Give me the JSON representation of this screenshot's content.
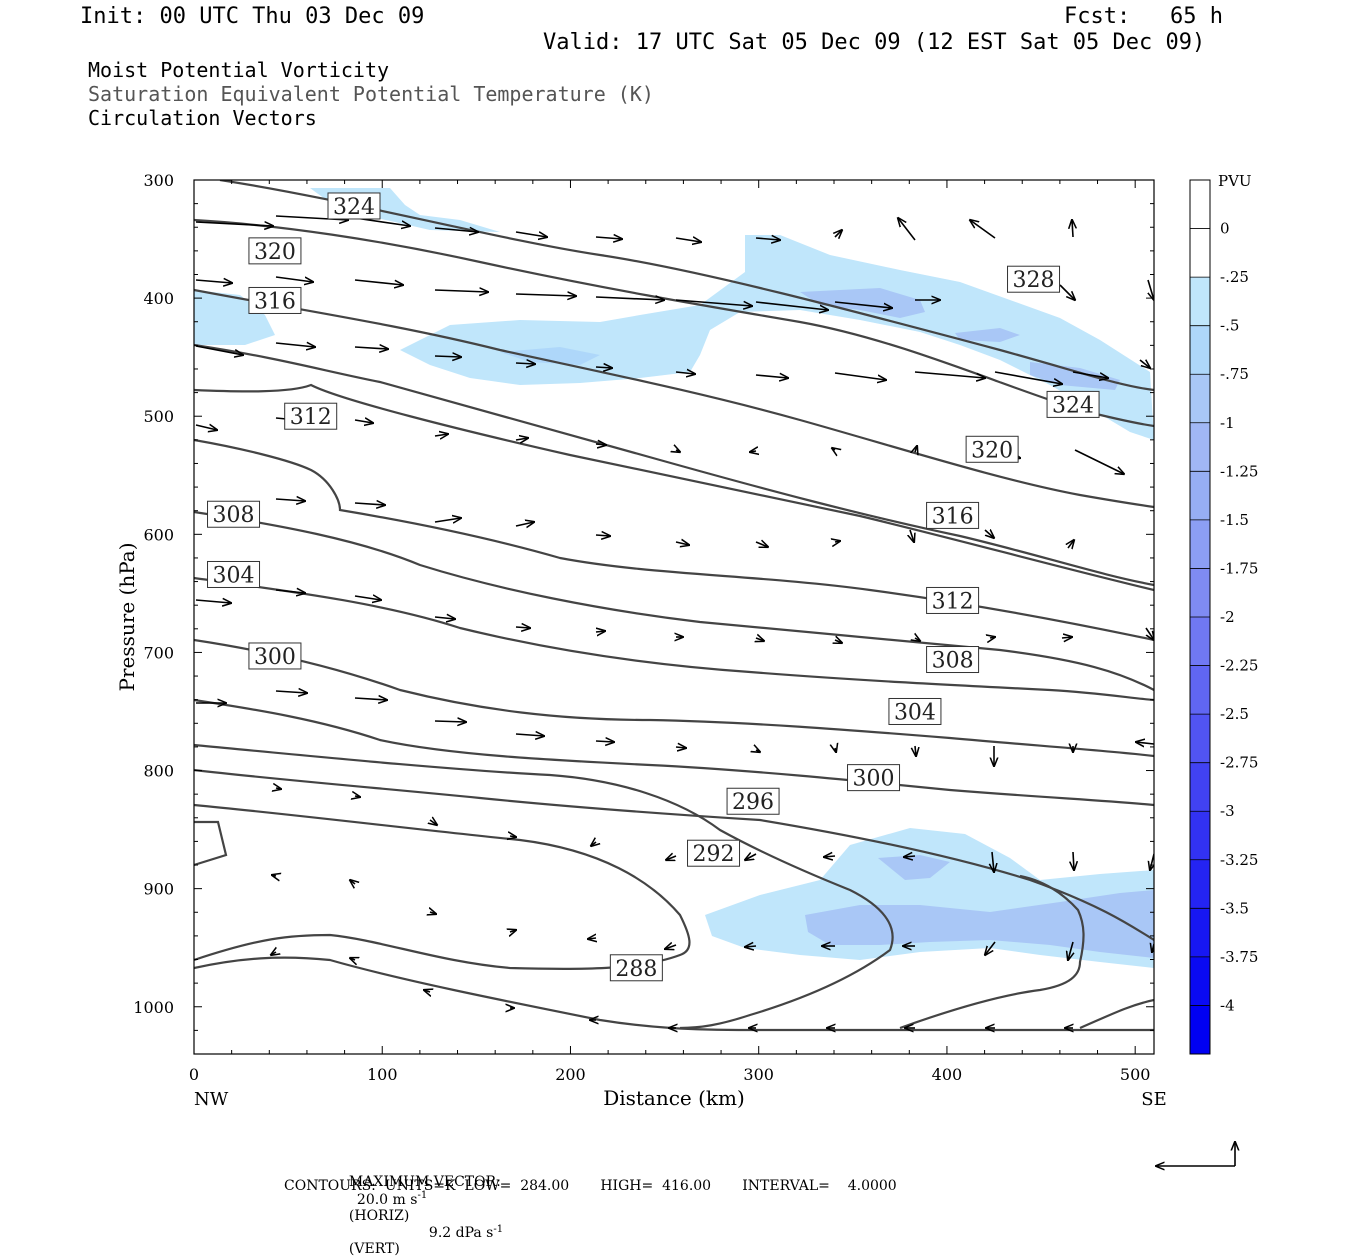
{
  "header": {
    "init": "Init: 00 UTC Thu 03 Dec 09",
    "fcst": "Fcst:   65 h",
    "valid": "Valid: 17 UTC Sat 05 Dec 09 (12 EST Sat 05 Dec 09)"
  },
  "fields": {
    "f1": "Moist Potential Vorticity",
    "f2": "Saturation Equivalent Potential Temperature (K)",
    "f3": "Circulation Vectors"
  },
  "footer": {
    "max_vector_label": "MAXIMUM VECTOR:",
    "horiz_value": "20.0 m s",
    "horiz_unit": "(HORIZ)",
    "vert_value": "9.2 dPa s",
    "vert_unit": "(VERT)",
    "exp": "-1",
    "contours": "CONTOURS:  UNITS=K  LOW=  284.00       HIGH=  416.00       INTERVAL=    4.0000"
  },
  "colors": {
    "pv1": "#c0e6fb",
    "pv2": "#a9c7f6",
    "pv3": "#96aef4",
    "contour": "#444444"
  },
  "chart_data": {
    "type": "cross-section",
    "xlabel": "Distance (km)",
    "ylabel": "Pressure (hPa)",
    "xlim": [
      0,
      510
    ],
    "ylim": [
      1040,
      300
    ],
    "x_ticks": [
      0,
      100,
      200,
      300,
      400,
      500
    ],
    "y_ticks": [
      300,
      400,
      500,
      600,
      700,
      800,
      900,
      1000
    ],
    "x_end_labels": {
      "left": "NW",
      "right": "SE"
    },
    "colorbar": {
      "title": "PVU",
      "labels": [
        "0",
        "-.25",
        "-.5",
        "-.75",
        "-1",
        "-1.25",
        "-1.5",
        "-1.75",
        "-2",
        "-2.25",
        "-2.5",
        "-2.75",
        "-3",
        "-3.25",
        "-3.5",
        "-3.75",
        "-4"
      ],
      "colors": [
        "#ffffff",
        "#ffffff",
        "#c0e6fb",
        "#aed7fa",
        "#a9c7f6",
        "#a1b7f5",
        "#96aef4",
        "#8c9ef4",
        "#7f8bf3",
        "#7078f3",
        "#6066f3",
        "#5154f3",
        "#4142f3",
        "#3232f3",
        "#2424f3",
        "#1717f3",
        "#0a0af3",
        "#0000f3"
      ]
    },
    "contour_labels": [
      {
        "text": "324",
        "x": 85,
        "p": 322
      },
      {
        "text": "320",
        "x": 43,
        "p": 360
      },
      {
        "text": "316",
        "x": 43,
        "p": 402
      },
      {
        "text": "312",
        "x": 62,
        "p": 500
      },
      {
        "text": "308",
        "x": 21,
        "p": 583
      },
      {
        "text": "304",
        "x": 21,
        "p": 634
      },
      {
        "text": "300",
        "x": 43,
        "p": 703
      },
      {
        "text": "328",
        "x": 446,
        "p": 384
      },
      {
        "text": "324",
        "x": 467,
        "p": 490
      },
      {
        "text": "320",
        "x": 424,
        "p": 528
      },
      {
        "text": "316",
        "x": 403,
        "p": 584
      },
      {
        "text": "312",
        "x": 403,
        "p": 656
      },
      {
        "text": "308",
        "x": 403,
        "p": 706
      },
      {
        "text": "304",
        "x": 383,
        "p": 750
      },
      {
        "text": "300",
        "x": 361,
        "p": 806
      },
      {
        "text": "296",
        "x": 297,
        "p": 826
      },
      {
        "text": "292",
        "x": 276,
        "p": 870
      },
      {
        "text": "288",
        "x": 235,
        "p": 967
      }
    ]
  }
}
